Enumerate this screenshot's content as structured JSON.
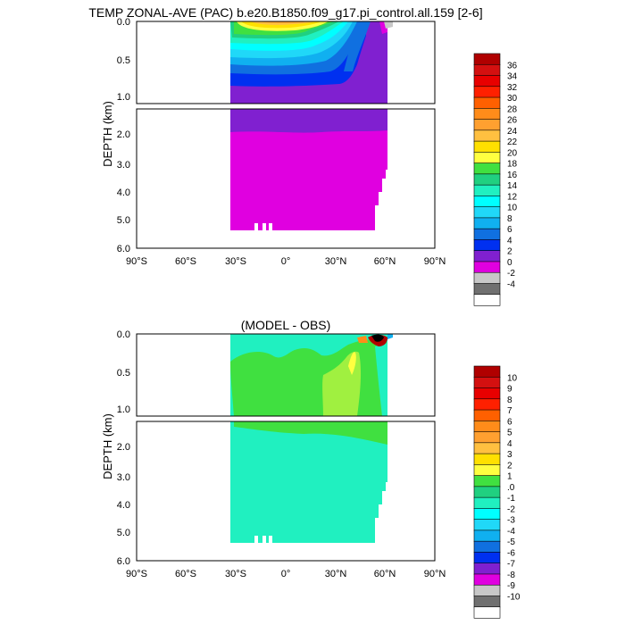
{
  "figure": {
    "title": "TEMP ZONAL-AVE (PAC) b.e20.B1850.f09_g17.pi_control.all.159 [2-6]"
  },
  "chart_data": [
    {
      "type": "heatmap",
      "title": "TEMP ZONAL-AVE (PAC) b.e20.B1850.f09_g17.pi_control.all.159 [2-6]",
      "ylabel": "DEPTH (km)",
      "xlabel": "",
      "x_ticks": [
        "90°S",
        "60°S",
        "30°S",
        "0°",
        "30°N",
        "60°N",
        "90°N"
      ],
      "y_ticks_upper": [
        "0.0",
        "0.5",
        "1.0"
      ],
      "y_ticks_lower": [
        "2.0",
        "3.0",
        "4.0",
        "5.0",
        "6.0"
      ],
      "xlim": [
        -90,
        90
      ],
      "ylim": [
        6.0,
        0.0
      ],
      "split_depth_km": 1.0,
      "colorbar": {
        "labels": [
          "36",
          "34",
          "32",
          "30",
          "28",
          "26",
          "24",
          "22",
          "20",
          "18",
          "16",
          "14",
          "12",
          "10",
          "8",
          "6",
          "4",
          "2",
          "0",
          "-2",
          "-4"
        ],
        "colors": [
          "#b00000",
          "#d41010",
          "#e80000",
          "#ff2000",
          "#ff6000",
          "#ff8c1a",
          "#ffa030",
          "#ffc040",
          "#ffe000",
          "#ffff40",
          "#40e040",
          "#20d080",
          "#20f0c0",
          "#00ffff",
          "#20d8f8",
          "#10b0f0",
          "#1070e0",
          "#0030f0",
          "#8020d0",
          "#e000e0",
          "#c8c8c8",
          "#707070",
          "#ffffff"
        ]
      }
    },
    {
      "type": "heatmap",
      "title": "(MODEL - OBS)",
      "ylabel": "DEPTH (km)",
      "xlabel": "",
      "x_ticks": [
        "90°S",
        "60°S",
        "30°S",
        "0°",
        "30°N",
        "60°N",
        "90°N"
      ],
      "y_ticks_upper": [
        "0.0",
        "0.5",
        "1.0"
      ],
      "y_ticks_lower": [
        "2.0",
        "3.0",
        "4.0",
        "5.0",
        "6.0"
      ],
      "xlim": [
        -90,
        90
      ],
      "ylim": [
        6.0,
        0.0
      ],
      "split_depth_km": 1.0,
      "colorbar": {
        "labels": [
          "10",
          "9",
          "8",
          "7",
          "6",
          "5",
          "4",
          "3",
          "2",
          "1",
          ".0",
          "-1",
          "-2",
          "-3",
          "-4",
          "-5",
          "-6",
          "-7",
          "-8",
          "-9",
          "-10"
        ],
        "colors": [
          "#b00000",
          "#d41010",
          "#e80000",
          "#ff2000",
          "#ff6000",
          "#ff8c1a",
          "#ffa030",
          "#ffc040",
          "#ffe000",
          "#ffff40",
          "#40e040",
          "#20d080",
          "#20f0c0",
          "#00ffff",
          "#20d8f8",
          "#10b0f0",
          "#1070e0",
          "#0030f0",
          "#8020d0",
          "#e000e0",
          "#c8c8c8",
          "#707070",
          "#ffffff"
        ]
      }
    }
  ]
}
